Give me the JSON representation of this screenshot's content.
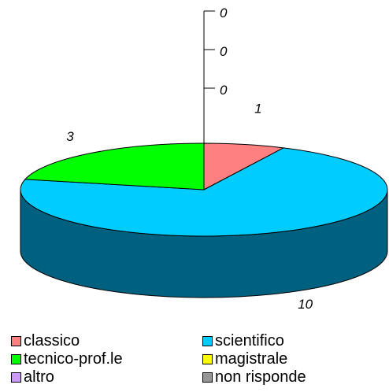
{
  "chart_data": {
    "type": "pie",
    "three_d": true,
    "categories": [
      "classico",
      "scientifico",
      "tecnico-prof.le",
      "magistrale",
      "altro",
      "non risponde"
    ],
    "values": [
      1,
      10,
      3,
      0,
      0,
      0
    ],
    "colors": [
      "#FF8080",
      "#00CCFF",
      "#00FF00",
      "#FFFF00",
      "#CC99FF",
      "#969696"
    ],
    "side_color": "#006080",
    "data_labels": [
      "1",
      "10",
      "3",
      "0",
      "0",
      "0"
    ],
    "legend": {
      "placement": "bottom",
      "entries": [
        "classico",
        "scientifico",
        "tecnico-prof.le",
        "magistrale",
        "altro",
        "non risponde"
      ]
    }
  }
}
